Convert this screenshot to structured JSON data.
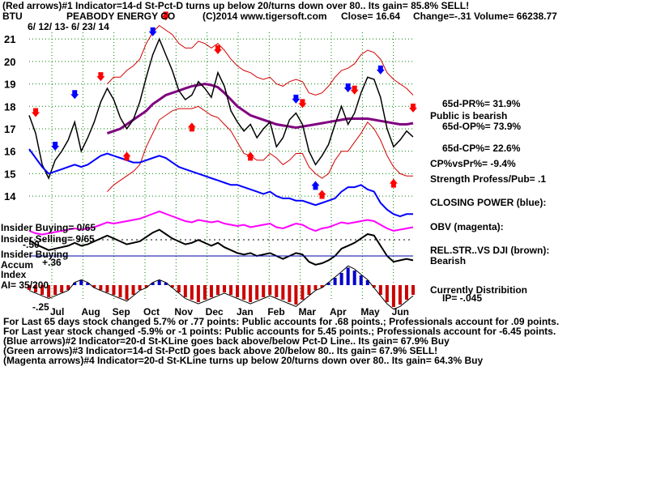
{
  "header": {
    "line1": "(Red arrows)#1 Indicator=14-d St-Pct-D turns up below 20/turns down over 80.. Its gain= 85.8% SELL!",
    "ticker": "BTU",
    "company": "PEABODY ENERGY CO",
    "copyright": "(C)2014 www.tigersoft.com",
    "close": "Close=  16.64",
    "change": "Change=-.31",
    "volume": "Volume= 66238.77",
    "date_range": "6/ 12/ 13-  6/ 23/ 14"
  },
  "right_panel": {
    "pr": "65d-PR%= 31.9%",
    "bearish": "Public is bearish",
    "op": "65d-OP%= 73.9%",
    "cp": "65d-CP%= 22.6%",
    "cpvspr": "CP%vsPr%= -9.4%",
    "strength": "Strength Profess/Pub= .1",
    "closing_power": "CLOSING POWER (blue):",
    "obv": "OBV (magenta):",
    "relstr": "REL.STR..VS DJI (brown):",
    "relstr_value": "Bearish",
    "distribution": "Currently Distribition",
    "ip": "IP= -.045"
  },
  "left_panel": {
    "insider_buying_ratio": "Insider Buying= 0/65",
    "insider_selling_ratio": "Insider Selling= 9/65",
    "insider_buying": "Insider Buying",
    "accum": "Accum",
    "accum_value": "+.36",
    "index": "Index",
    "ai": "AI= 35/200",
    "minus50": "-.50",
    "minus25": "-.25"
  },
  "footer": [
    "For Last 65 days stock changed  5.7% or  .77 points:  Public accounts for  .68 points.;  Professionals account for  .09 points.",
    "For Last year stock changed -5.9% or -1 points:  Public accounts for  5.45 points.;  Professionals account for -6.45 points.",
    "(Blue arrows)#2 Indicator=20-d St-KLine goes back above/below Pct-D Line.. Its gain= 67.9% Buy",
    "(Green arrows)#3 Indicator=14-d St-PctD goes back above 20/below 80.. Its gain= 67.9% SELL!",
    "(Magenta arrows)#4 Indicator=20-d St-KLine turns up below 20/turns down over 80.. Its gain= 64.3% Buy"
  ],
  "colors": {
    "price": "#000000",
    "band": "#d40000",
    "ma": "#800080",
    "closing_power": "#0000ff",
    "obv": "#ff00ff",
    "relstr": "#000000",
    "accum_pos": "#0000cc",
    "accum_neg": "#cc0000",
    "grid": "#008000",
    "red_arrow": "#ff0000",
    "blue_arrow": "#0000ff"
  },
  "chart_data": {
    "type": "line",
    "months": [
      "Jul",
      "Aug",
      "Sep",
      "Oct",
      "Nov",
      "Dec",
      "Jan",
      "Feb",
      "Mar",
      "Apr",
      "May",
      "Jun"
    ],
    "y_ticks": [
      21,
      20,
      19,
      18,
      17,
      16,
      15,
      14
    ],
    "ylim": [
      13.5,
      21.8
    ],
    "price_close": [
      17.6,
      16.8,
      15.4,
      14.8,
      15.6,
      16.0,
      16.5,
      17.3,
      16.0,
      16.6,
      17.3,
      18.2,
      18.8,
      18.3,
      17.5,
      17.0,
      17.4,
      18.2,
      19.3,
      20.3,
      21.0,
      20.3,
      19.6,
      18.7,
      18.3,
      18.5,
      19.1,
      18.8,
      18.4,
      19.5,
      18.9,
      17.8,
      17.3,
      16.9,
      17.2,
      16.6,
      17.0,
      17.3,
      16.2,
      16.6,
      17.4,
      17.7,
      17.2,
      16.0,
      15.4,
      15.8,
      16.3,
      17.2,
      18.0,
      17.2,
      17.7,
      18.6,
      19.3,
      19.2,
      18.4,
      17.0,
      16.2,
      16.5,
      16.9,
      16.64
    ],
    "ma": [
      null,
      null,
      null,
      null,
      null,
      null,
      null,
      null,
      null,
      null,
      null,
      null,
      16.8,
      16.9,
      17.0,
      17.2,
      17.4,
      17.6,
      17.8,
      18.1,
      18.3,
      18.5,
      18.6,
      18.7,
      18.8,
      18.9,
      18.95,
      19.0,
      18.95,
      18.85,
      18.6,
      18.3,
      18.0,
      17.8,
      17.6,
      17.5,
      17.4,
      17.3,
      17.2,
      17.15,
      17.1,
      17.05,
      17.1,
      17.15,
      17.2,
      17.25,
      17.3,
      17.35,
      17.4,
      17.45,
      17.45,
      17.45,
      17.45,
      17.4,
      17.35,
      17.3,
      17.25,
      17.2,
      17.2,
      17.25
    ],
    "upper_band": [
      null,
      null,
      null,
      null,
      null,
      null,
      null,
      null,
      null,
      null,
      null,
      null,
      19.0,
      19.3,
      19.3,
      19.6,
      19.8,
      20.1,
      20.8,
      21.3,
      21.6,
      21.4,
      21.2,
      20.8,
      20.6,
      20.6,
      20.9,
      20.8,
      20.6,
      20.8,
      20.5,
      20.1,
      19.8,
      19.6,
      19.5,
      19.3,
      19.2,
      19.3,
      19.0,
      18.9,
      19.1,
      19.2,
      19.1,
      18.6,
      18.5,
      18.6,
      18.9,
      19.3,
      19.6,
      19.7,
      19.9,
      20.3,
      20.5,
      20.4,
      20.1,
      19.5,
      19.2,
      19.0,
      18.8,
      18.5
    ],
    "lower_band": [
      null,
      null,
      null,
      null,
      null,
      null,
      null,
      null,
      null,
      null,
      null,
      null,
      14.2,
      14.5,
      14.7,
      14.9,
      15.1,
      15.4,
      16.2,
      16.8,
      17.4,
      17.6,
      17.8,
      17.9,
      17.9,
      17.9,
      18.0,
      17.8,
      17.6,
      17.5,
      17.2,
      16.9,
      16.4,
      15.9,
      15.8,
      15.6,
      15.6,
      15.9,
      15.7,
      15.4,
      15.6,
      15.9,
      15.9,
      15.3,
      15.0,
      14.8,
      15.0,
      15.6,
      16.0,
      16.0,
      16.4,
      16.8,
      17.3,
      17.0,
      16.5,
      15.8,
      15.3,
      15.0,
      14.9,
      14.9
    ],
    "closing_power": [
      16.1,
      15.7,
      15.3,
      15.0,
      15.1,
      15.2,
      15.3,
      15.4,
      15.3,
      15.4,
      15.6,
      15.8,
      15.9,
      15.8,
      15.7,
      15.6,
      15.5,
      15.5,
      15.6,
      15.7,
      15.8,
      15.7,
      15.5,
      15.3,
      15.2,
      15.1,
      15.0,
      14.9,
      14.8,
      14.7,
      14.6,
      14.5,
      14.5,
      14.4,
      14.3,
      14.2,
      14.1,
      14.2,
      14.0,
      13.9,
      13.9,
      13.8,
      13.8,
      13.7,
      13.6,
      13.7,
      13.8,
      13.9,
      14.2,
      14.4,
      14.4,
      14.5,
      14.3,
      14.2,
      13.7,
      13.4,
      13.2,
      13.1,
      13.2,
      13.2
    ],
    "obv": [
      12.0,
      11.8,
      11.7,
      11.8,
      11.9,
      12.0,
      12.1,
      12.2,
      12.1,
      12.2,
      12.3,
      12.5,
      12.7,
      12.6,
      12.7,
      12.8,
      12.9,
      13.0,
      13.2,
      13.4,
      13.6,
      13.4,
      13.2,
      13.0,
      12.8,
      12.7,
      12.9,
      12.8,
      12.7,
      12.8,
      12.6,
      12.5,
      12.4,
      12.5,
      12.3,
      12.4,
      12.5,
      12.6,
      12.3,
      12.2,
      12.4,
      12.6,
      12.5,
      12.2,
      12.0,
      12.2,
      12.3,
      12.5,
      12.7,
      12.6,
      12.7,
      12.8,
      12.9,
      12.8,
      12.5,
      12.2,
      12.0,
      12.1,
      12.2,
      12.3
    ],
    "rel_strength": [
      11.5,
      11.2,
      11.0,
      10.8,
      10.9,
      11.0,
      11.1,
      11.3,
      11.1,
      11.2,
      11.4,
      11.6,
      11.8,
      11.6,
      11.4,
      11.2,
      11.3,
      11.4,
      11.7,
      12.0,
      12.2,
      11.9,
      11.6,
      11.4,
      11.2,
      11.3,
      11.5,
      11.3,
      11.1,
      11.3,
      11.0,
      10.8,
      10.6,
      10.5,
      10.6,
      10.4,
      10.5,
      10.6,
      10.4,
      10.2,
      10.4,
      10.6,
      10.5,
      10.0,
      9.8,
      9.9,
      10.1,
      10.4,
      10.9,
      11.1,
      11.3,
      11.6,
      11.9,
      11.8,
      11.1,
      10.4,
      10.0,
      10.1,
      10.2,
      10.1
    ],
    "accum": [
      -0.1,
      -0.15,
      -0.2,
      -0.25,
      -0.2,
      -0.15,
      -0.1,
      0.05,
      0.1,
      0.05,
      -0.05,
      -0.1,
      -0.15,
      -0.2,
      -0.25,
      -0.3,
      -0.2,
      -0.1,
      -0.05,
      0.05,
      0.1,
      0.05,
      -0.05,
      -0.15,
      -0.25,
      -0.3,
      -0.35,
      -0.3,
      -0.25,
      -0.2,
      -0.15,
      -0.2,
      -0.25,
      -0.3,
      -0.35,
      -0.3,
      -0.25,
      -0.2,
      -0.25,
      -0.3,
      -0.35,
      -0.4,
      -0.3,
      -0.2,
      -0.1,
      -0.05,
      0.05,
      0.15,
      0.25,
      0.36,
      0.3,
      0.2,
      0.1,
      -0.05,
      -0.2,
      -0.35,
      -0.45,
      -0.4,
      -0.3,
      -0.2
    ]
  }
}
